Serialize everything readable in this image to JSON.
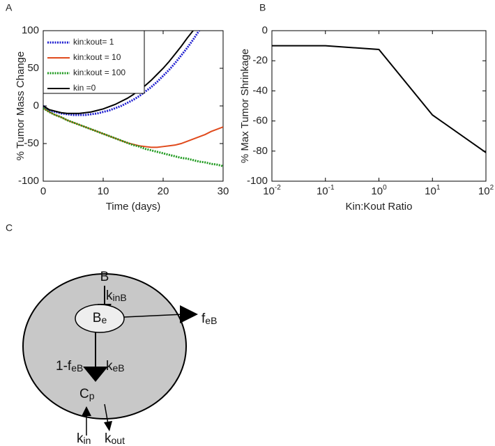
{
  "chart_data": [
    {
      "type": "line",
      "panel": "A",
      "ylabel": "% Tumor Mass Change",
      "xlabel": "Time (days)",
      "x": [
        0,
        1,
        2,
        3,
        4,
        5,
        6,
        7,
        8,
        9,
        10,
        11,
        12,
        13,
        14,
        15,
        16,
        17,
        18,
        19,
        20,
        21,
        22,
        23,
        24,
        25,
        26,
        27,
        28,
        29,
        30
      ],
      "xlim": [
        0,
        30
      ],
      "xticks": [
        0,
        10,
        20,
        30
      ],
      "ylim": [
        -100,
        100
      ],
      "yticks": [
        -100,
        -50,
        0,
        50,
        100
      ],
      "legend": "upper-left",
      "series": [
        {
          "name": "kin:kout= 1",
          "color": "#1f1fd0",
          "line_style": "dotted",
          "values": [
            0,
            -6,
            -8,
            -10,
            -11,
            -12,
            -12,
            -12,
            -11,
            -10,
            -8,
            -6,
            -3,
            0,
            4,
            8,
            13,
            19,
            25,
            32,
            40,
            48,
            57,
            67,
            77,
            88,
            100,
            null,
            null,
            null,
            null
          ]
        },
        {
          "name": "kin:kout = 10",
          "color": "#e04a1c",
          "line_style": "solid",
          "values": [
            -3,
            -8,
            -12,
            -15,
            -19,
            -22,
            -25,
            -28,
            -31,
            -34,
            -37,
            -40,
            -43,
            -46,
            -49,
            -51,
            -53,
            -54,
            -55,
            -55,
            -54,
            -53,
            -52,
            -50,
            -47,
            -44,
            -41,
            -38,
            -34,
            -31,
            -28
          ]
        },
        {
          "name": "kin:kout = 100",
          "color": "#1f9a1f",
          "line_style": "dotted",
          "values": [
            -3,
            -8,
            -12,
            -15,
            -19,
            -22,
            -25,
            -28,
            -31,
            -34,
            -37,
            -40,
            -43,
            -46,
            -49,
            -52,
            -54,
            -57,
            -59,
            -61,
            -63,
            -65,
            -67,
            -69,
            -70,
            -72,
            -74,
            -75,
            -77,
            -78,
            -80
          ]
        },
        {
          "name": "kin =0",
          "color": "#000000",
          "line_style": "solid",
          "values": [
            0,
            -5,
            -7,
            -9,
            -10,
            -10,
            -10,
            -9,
            -8,
            -6,
            -4,
            -1,
            2,
            6,
            10,
            15,
            21,
            27,
            34,
            42,
            50,
            59,
            69,
            79,
            90,
            100,
            null,
            null,
            null,
            null,
            null
          ]
        }
      ]
    },
    {
      "type": "line",
      "panel": "B",
      "ylabel": "% Max Tumor Shrinkage",
      "xlabel": "Kin:Kout Ratio",
      "xscale": "log",
      "x": [
        0.01,
        0.1,
        1,
        10,
        100
      ],
      "xlim": [
        0.01,
        100
      ],
      "xticks": [
        {
          "value": 0.01,
          "label": "10",
          "exponent": "-2"
        },
        {
          "value": 0.1,
          "label": "10",
          "exponent": "-1"
        },
        {
          "value": 1,
          "label": "10",
          "exponent": "0"
        },
        {
          "value": 10,
          "label": "10",
          "exponent": "1"
        },
        {
          "value": 100,
          "label": "10",
          "exponent": "2"
        }
      ],
      "ylim": [
        -100,
        0
      ],
      "yticks": [
        -100,
        -80,
        -60,
        -40,
        -20,
        0
      ],
      "series": [
        {
          "color": "#000000",
          "line_style": "solid",
          "values": [
            -10,
            -10,
            -12.5,
            -56,
            -81
          ]
        }
      ]
    }
  ],
  "diagram": {
    "panel": "C",
    "labels": {
      "b": {
        "text": "B"
      },
      "kinb": {
        "text": "k",
        "sub": "inB"
      },
      "be": {
        "text": "B",
        "sub": "e"
      },
      "feb": {
        "text": "f",
        "sub": "eB"
      },
      "onemfeb": {
        "text": "1-f",
        "sub": "eB"
      },
      "keb": {
        "text": "k",
        "sub": "eB"
      },
      "cp": {
        "text": "C",
        "sub": "p"
      },
      "kin": {
        "text": "k",
        "sub": "in"
      },
      "kout": {
        "text": "k",
        "sub": "out"
      }
    }
  }
}
